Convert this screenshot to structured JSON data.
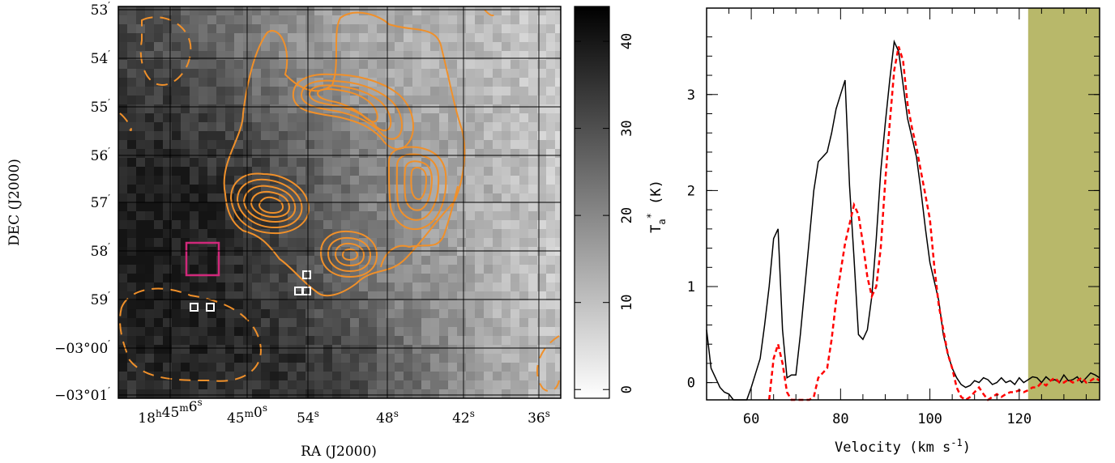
{
  "chart_data": [
    {
      "type": "heatmap",
      "xlabel": "RA (J2000)",
      "ylabel": "DEC (J2000)",
      "x_ticks": [
        {
          "h": "18",
          "m": "45",
          "s": "6"
        },
        {
          "m": "45",
          "s": "0"
        },
        {
          "s": "54"
        },
        {
          "s": "48"
        },
        {
          "s": "42"
        },
        {
          "s": "36"
        }
      ],
      "y_ticks": [
        {
          "label": "53",
          "unit": "′"
        },
        {
          "label": "54",
          "unit": "′"
        },
        {
          "label": "55",
          "unit": "′"
        },
        {
          "label": "56",
          "unit": "′"
        },
        {
          "label": "57",
          "unit": "′"
        },
        {
          "label": "58",
          "unit": "′"
        },
        {
          "label": "59",
          "unit": "′"
        },
        {
          "label": "−03°00",
          "unit": "′"
        },
        {
          "label": "−03°01",
          "unit": "′"
        }
      ],
      "colorbar_ticks": [
        "0",
        "10",
        "20",
        "30",
        "40"
      ],
      "colorbar_range": [
        -1,
        44
      ],
      "grid": true,
      "contour_color": "#f0902a",
      "marker_colors": {
        "magenta_box": "#d0287a",
        "white_boxes": "#ffffff"
      }
    },
    {
      "type": "line",
      "xlabel": "Velocity (km s⁻¹)",
      "ylabel": "Tₐ* (K)",
      "xlim": [
        50,
        138
      ],
      "ylim": [
        -0.18,
        3.9
      ],
      "x_ticks": [
        "60",
        "80",
        "100",
        "120"
      ],
      "y_ticks": [
        "0",
        "1",
        "2",
        "3"
      ],
      "shaded_region": {
        "from": 122,
        "to": 138,
        "color": "#b8b86a"
      },
      "series": [
        {
          "style": "solid",
          "color": "#000000",
          "x": [
            50,
            51,
            52,
            53,
            54,
            55,
            56,
            57,
            58,
            59,
            60,
            61,
            62,
            63,
            64,
            65,
            66,
            67,
            68,
            69,
            70,
            71,
            72,
            73,
            74,
            75,
            76,
            77,
            78,
            79,
            80,
            81,
            82,
            83,
            84,
            85,
            86,
            87,
            88,
            89,
            90,
            91,
            92,
            93,
            94,
            95,
            96,
            97,
            98,
            99,
            100,
            101,
            102,
            103,
            104,
            105,
            106,
            107,
            108,
            109,
            110,
            111,
            112,
            113,
            114,
            115,
            116,
            117,
            118,
            119,
            120,
            121,
            122,
            123,
            124,
            125,
            126,
            127,
            128,
            129,
            130,
            131,
            132,
            133,
            134,
            135,
            136,
            137,
            138
          ],
          "y": [
            0.55,
            0.15,
            0.05,
            -0.05,
            -0.1,
            -0.12,
            -0.18,
            -0.25,
            -0.3,
            -0.22,
            -0.05,
            0.1,
            0.25,
            0.6,
            1.0,
            1.5,
            1.6,
            0.55,
            0.05,
            0.08,
            0.08,
            0.5,
            1.0,
            1.5,
            2.0,
            2.3,
            2.35,
            2.4,
            2.6,
            2.85,
            3.0,
            3.15,
            2.05,
            1.3,
            0.5,
            0.45,
            0.55,
            0.9,
            1.5,
            2.2,
            2.7,
            3.15,
            3.55,
            3.45,
            3.1,
            2.75,
            2.55,
            2.35,
            2.0,
            1.6,
            1.25,
            1.05,
            0.85,
            0.5,
            0.3,
            0.15,
            0.05,
            -0.02,
            -0.05,
            -0.03,
            0.02,
            0.0,
            0.05,
            0.03,
            -0.02,
            0.0,
            0.05,
            0.0,
            0.02,
            -0.02,
            0.05,
            0.0,
            0.03,
            0.06,
            0.05,
            0.0,
            0.06,
            0.02,
            0.03,
            0.0,
            0.08,
            0.02,
            0.03,
            0.06,
            0.0,
            0.05,
            0.1,
            0.08,
            0.05
          ]
        },
        {
          "style": "dashed",
          "color": "#ff0000",
          "x": [
            64,
            65,
            66,
            67,
            68,
            69,
            70,
            71,
            72,
            73,
            74,
            75,
            76,
            77,
            78,
            79,
            80,
            81,
            82,
            83,
            84,
            85,
            86,
            87,
            88,
            89,
            90,
            91,
            92,
            93,
            94,
            95,
            96,
            97,
            98,
            99,
            100,
            101,
            102,
            103,
            104,
            105,
            106,
            107,
            108,
            109,
            110,
            111,
            112,
            113,
            114,
            115,
            116,
            117,
            118,
            119,
            120,
            121,
            122,
            123,
            124,
            125,
            126,
            127,
            128,
            129,
            130,
            131,
            132,
            133,
            134,
            135,
            136,
            137,
            138
          ],
          "y": [
            -0.18,
            0.25,
            0.4,
            0.2,
            -0.1,
            -0.3,
            -0.4,
            -0.35,
            -0.3,
            -0.25,
            -0.15,
            0.05,
            0.1,
            0.15,
            0.45,
            0.85,
            1.15,
            1.45,
            1.65,
            1.85,
            1.75,
            1.45,
            1.1,
            0.9,
            1.0,
            1.4,
            2.1,
            2.7,
            3.25,
            3.5,
            3.35,
            2.9,
            2.65,
            2.45,
            2.2,
            1.95,
            1.7,
            1.2,
            0.8,
            0.55,
            0.3,
            0.15,
            -0.05,
            -0.15,
            -0.2,
            -0.15,
            -0.1,
            -0.05,
            -0.12,
            -0.2,
            -0.15,
            -0.12,
            -0.15,
            -0.12,
            -0.1,
            -0.1,
            -0.08,
            -0.1,
            -0.08,
            -0.05,
            -0.05,
            0.0,
            -0.03,
            0.02,
            0.05,
            0.0,
            0.0,
            0.03,
            0.0,
            0.02,
            0.05,
            0.0,
            0.02,
            0.05,
            0.02
          ]
        }
      ]
    }
  ]
}
